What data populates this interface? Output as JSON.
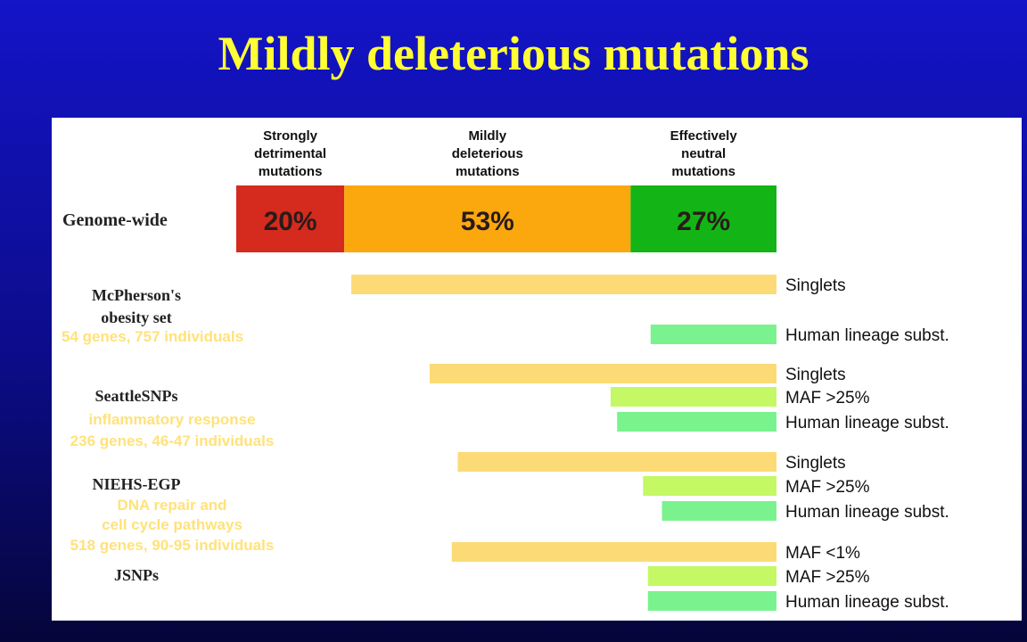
{
  "slide": {
    "title": "Mildly deleterious mutations"
  },
  "chart_data": {
    "type": "bar",
    "column_headers": [
      [
        "Strongly",
        "detrimental",
        "mutations"
      ],
      [
        "Mildly",
        "deleterious",
        "mutations"
      ],
      [
        "Effectively",
        "neutral",
        "mutations"
      ]
    ],
    "genome_wide": {
      "label": "Genome-wide",
      "segments": [
        {
          "label": "20%",
          "value": 20,
          "color": "#d42b1e"
        },
        {
          "label": "53%",
          "value": 53,
          "color": "#fba80f"
        },
        {
          "label": "27%",
          "value": 27,
          "color": "#12b515"
        }
      ]
    },
    "scale": {
      "min": 0,
      "max": 100,
      "orientation": "right-anchored"
    },
    "groups": [
      {
        "title_lines": [
          "McPherson's",
          "obesity set"
        ],
        "detail_lines": [
          "54 genes, 757 individuals"
        ],
        "bars": [
          {
            "label": "Singlets",
            "value": 78.7,
            "color": "#fcdb76"
          },
          {
            "label": "Human lineage subst.",
            "value": 23.3,
            "color": "#7af38e"
          }
        ]
      },
      {
        "title_lines": [
          "SeattleSNPs"
        ],
        "detail_lines": [
          "inflammatory response",
          "236 genes, 46-47 individuals"
        ],
        "bars": [
          {
            "label": "Singlets",
            "value": 64.2,
            "color": "#fcdb76"
          },
          {
            "label": "MAF >25%",
            "value": 30.7,
            "color": "#c4f864"
          },
          {
            "label": "Human lineage subst.",
            "value": 29.5,
            "color": "#7af38e"
          }
        ]
      },
      {
        "title_lines": [
          "NIEHS-EGP"
        ],
        "detail_lines": [
          "DNA repair and",
          "cell cycle pathways",
          "518 genes, 90-95 individuals"
        ],
        "bars": [
          {
            "label": "Singlets",
            "value": 59.0,
            "color": "#fcdb76"
          },
          {
            "label": "MAF >25%",
            "value": 24.7,
            "color": "#c4f864"
          },
          {
            "label": "Human lineage subst.",
            "value": 21.2,
            "color": "#7af38e"
          }
        ]
      },
      {
        "title_lines": [
          "JSNPs"
        ],
        "detail_lines": [],
        "bars": [
          {
            "label": "MAF <1%",
            "value": 60.1,
            "color": "#fcdb76"
          },
          {
            "label": "MAF >25%",
            "value": 23.8,
            "color": "#c4f864"
          },
          {
            "label": "Human lineage subst.",
            "value": 23.8,
            "color": "#7af38e"
          }
        ]
      }
    ]
  }
}
